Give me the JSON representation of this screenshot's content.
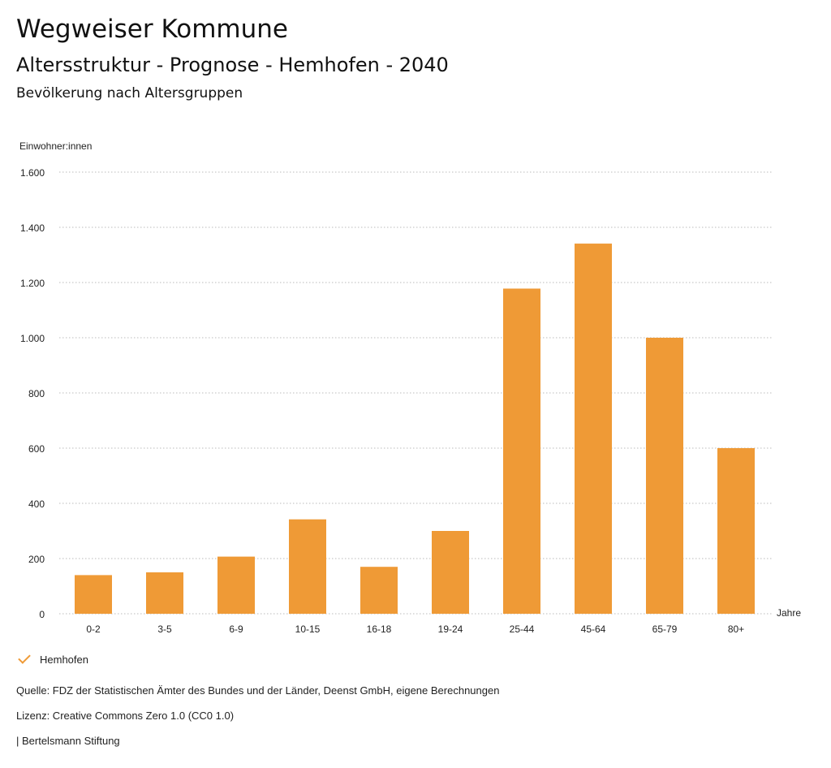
{
  "header": {
    "title": "Wegweiser Kommune",
    "subtitle": "Altersstruktur - Prognose - Hemhofen - 2040",
    "section_heading": "Bevölkerung nach Altersgruppen"
  },
  "legend": {
    "items": [
      {
        "label": "Hemhofen",
        "color": "#ef9a36",
        "icon": "check-icon"
      }
    ]
  },
  "footer": {
    "source": "Quelle: FDZ der Statistischen Ämter des Bundes und der Länder, Deenst GmbH, eigene Berechnungen",
    "license": "Lizenz: Creative Commons Zero 1.0 (CC0 1.0)",
    "publisher": "| Bertelsmann Stiftung"
  },
  "chart_data": {
    "type": "bar",
    "ylabel": "Einwohner:innen",
    "xlabel": "Jahre",
    "categories": [
      "0-2",
      "3-5",
      "6-9",
      "10-15",
      "16-18",
      "19-24",
      "25-44",
      "45-64",
      "65-79",
      "80+"
    ],
    "series": [
      {
        "name": "Hemhofen",
        "color": "#ef9a36",
        "values": [
          140,
          150,
          207,
          342,
          170,
          300,
          1178,
          1341,
          1000,
          600
        ]
      }
    ],
    "ylim": [
      0,
      1600
    ],
    "yticks": [
      0,
      200,
      400,
      600,
      800,
      1000,
      1200,
      1400,
      1600
    ],
    "ytick_labels": [
      "0",
      "200",
      "400",
      "600",
      "800",
      "1.000",
      "1.200",
      "1.400",
      "1.600"
    ],
    "grid": true,
    "gridline_color": "#bbbbbb",
    "legend_position": "bottom-left"
  }
}
